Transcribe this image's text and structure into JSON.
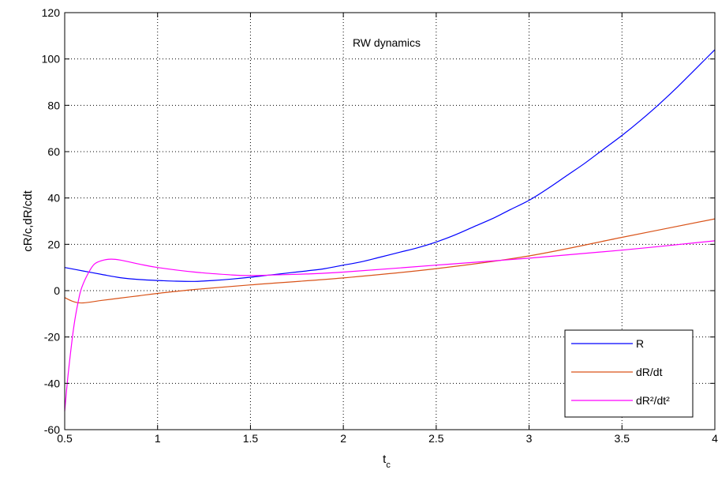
{
  "chart_data": {
    "type": "line",
    "title": "RW dynamics",
    "xlabel": "t",
    "xlabel_sub": "c",
    "ylabel": "cR/c,dR/cdt",
    "xlim": [
      0.5,
      4
    ],
    "ylim": [
      -60,
      120
    ],
    "xticks": [
      0.5,
      1,
      1.5,
      2,
      2.5,
      3,
      3.5,
      4
    ],
    "xtick_labels": [
      "0.5",
      "1",
      "1.5",
      "2",
      "2.5",
      "3",
      "3.5",
      "4"
    ],
    "yticks": [
      -60,
      -40,
      -20,
      0,
      20,
      40,
      60,
      80,
      100,
      120
    ],
    "ytick_labels": [
      "-60",
      "-40",
      "-20",
      "0",
      "20",
      "40",
      "60",
      "80",
      "100",
      "120"
    ],
    "grid": true,
    "legend_position": "bottom-right",
    "series": [
      {
        "name": "R",
        "color": "#0000ff",
        "x": [
          0.5,
          0.6,
          0.7,
          0.8,
          0.9,
          1.0,
          1.1,
          1.2,
          1.3,
          1.4,
          1.5,
          1.6,
          1.7,
          1.8,
          1.9,
          2.0,
          2.1,
          2.2,
          2.3,
          2.4,
          2.5,
          2.6,
          2.7,
          2.8,
          2.9,
          3.0,
          3.1,
          3.2,
          3.3,
          3.4,
          3.5,
          3.6,
          3.7,
          3.8,
          3.9,
          4.0
        ],
        "y": [
          10,
          8.5,
          7,
          5.6,
          4.8,
          4.4,
          4.1,
          4.0,
          4.4,
          5.0,
          5.8,
          6.7,
          7.6,
          8.5,
          9.5,
          11,
          12.5,
          14.5,
          16.5,
          18.5,
          21,
          24,
          27.5,
          31,
          35,
          39,
          44,
          49.5,
          55,
          61,
          67,
          73.5,
          80.5,
          88,
          96,
          104
        ]
      },
      {
        "name": "dR/dt",
        "color": "#d95319",
        "x": [
          0.5,
          0.55,
          0.6,
          0.7,
          0.8,
          0.9,
          1.0,
          1.2,
          1.5,
          2.0,
          2.5,
          3.0,
          3.5,
          4.0
        ],
        "y": [
          -3,
          -4.8,
          -5.3,
          -4.2,
          -3.2,
          -2.2,
          -1.2,
          0.5,
          2.5,
          5.5,
          9.5,
          15,
          23,
          31
        ]
      },
      {
        "name": "dR²/dt²",
        "color": "#ff00ff",
        "x": [
          0.5,
          0.52,
          0.55,
          0.58,
          0.6,
          0.63,
          0.66,
          0.7,
          0.75,
          0.8,
          0.9,
          1.0,
          1.2,
          1.4,
          1.5,
          1.6,
          1.8,
          2.0,
          2.5,
          3.0,
          3.5,
          4.0
        ],
        "y": [
          -52,
          -35,
          -15,
          -2,
          3,
          8,
          11.5,
          13,
          13.6,
          13.2,
          11.5,
          10,
          8,
          6.8,
          6.5,
          6.7,
          7.2,
          8,
          11,
          14,
          17.5,
          21.5
        ]
      }
    ]
  }
}
